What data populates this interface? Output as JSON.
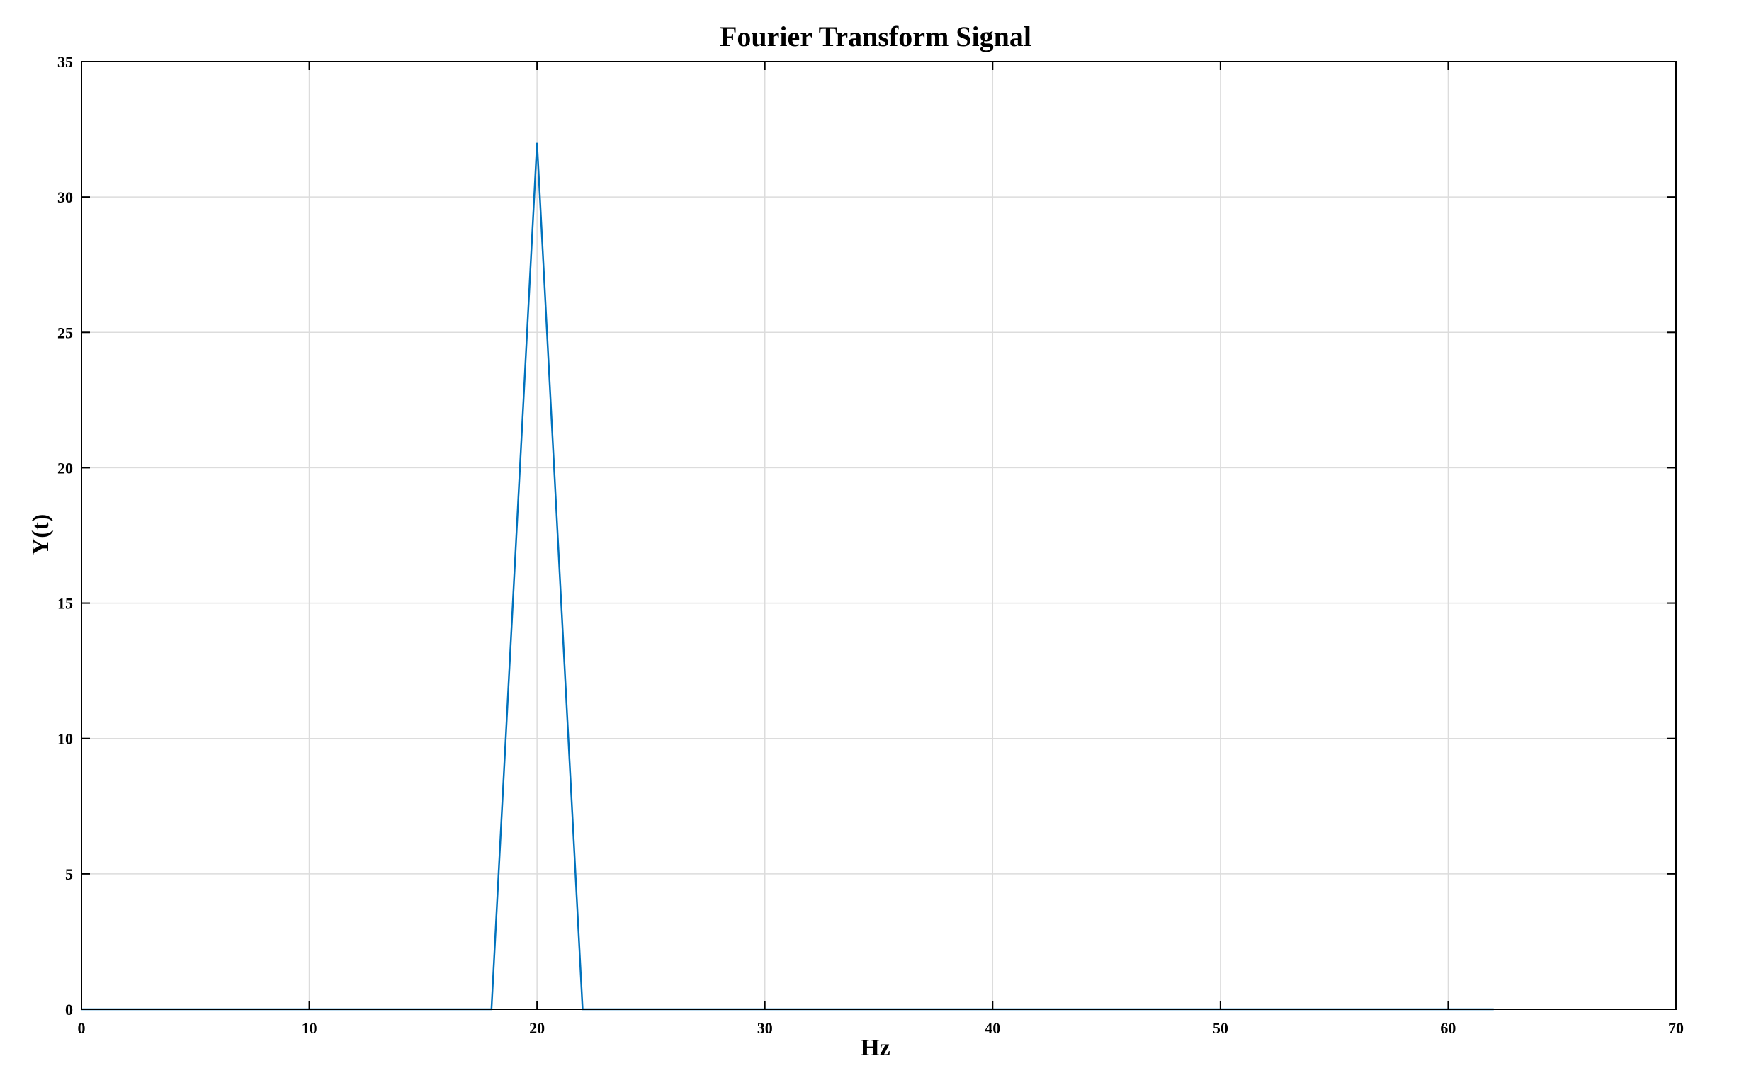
{
  "chart_data": {
    "type": "line",
    "title": "Fourier Transform Signal",
    "xlabel": "Hz",
    "ylabel": "Y(t)",
    "xlim": [
      0,
      70
    ],
    "ylim": [
      0,
      35
    ],
    "x_ticks": [
      0,
      10,
      20,
      30,
      40,
      50,
      60,
      70
    ],
    "y_ticks": [
      0,
      5,
      10,
      15,
      20,
      25,
      30,
      35
    ],
    "grid": true,
    "series": [
      {
        "color": "#0072bd",
        "x": [
          0,
          18,
          20,
          22,
          62
        ],
        "y": [
          0,
          0,
          32,
          0,
          0
        ]
      }
    ]
  }
}
